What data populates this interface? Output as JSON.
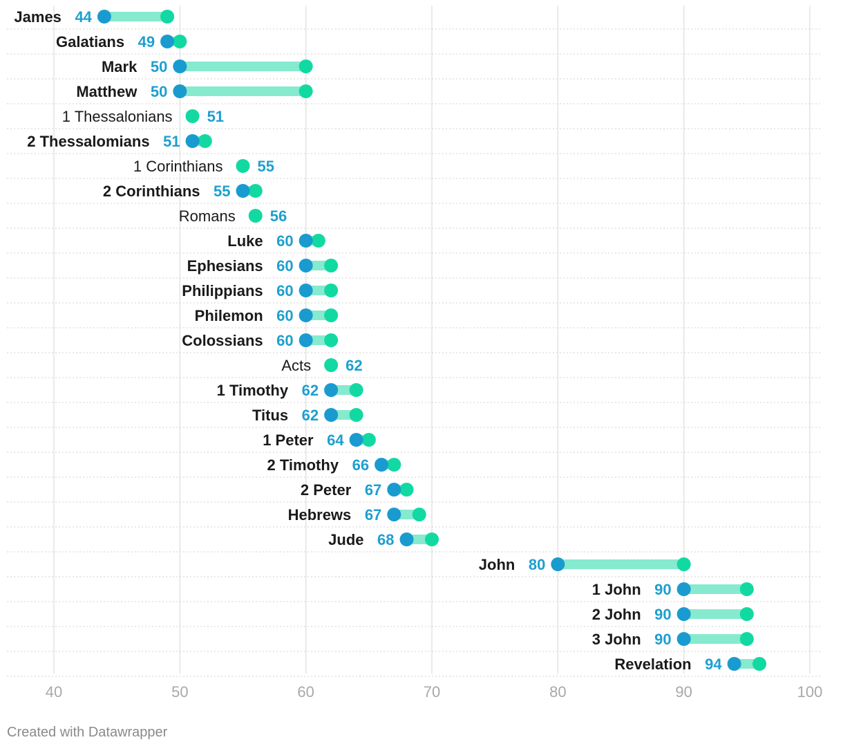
{
  "chart_data": {
    "type": "range-dot",
    "xlim": [
      40,
      100
    ],
    "xticks": [
      40,
      50,
      60,
      70,
      80,
      90,
      100
    ],
    "colors": {
      "start": "#1a9bcf",
      "end": "#12d9a2",
      "bar": "#86eacf",
      "value_label": "#1d9fd0",
      "label": "#1a1a1a"
    },
    "rows": [
      {
        "label": "James",
        "start": 44,
        "end": 49,
        "start_label": "44",
        "bold": true
      },
      {
        "label": "Galatians",
        "start": 49,
        "end": 50,
        "start_label": "49",
        "bold": true
      },
      {
        "label": "Mark",
        "start": 50,
        "end": 60,
        "start_label": "50",
        "bold": true
      },
      {
        "label": "Matthew",
        "start": 50,
        "end": 60,
        "start_label": "50",
        "bold": true
      },
      {
        "label": "1 Thessalonians",
        "start": 51,
        "end": 51,
        "start_label": "51",
        "bold": false
      },
      {
        "label": "2 Thessalomians",
        "start": 51,
        "end": 52,
        "start_label": "51",
        "bold": true
      },
      {
        "label": "1 Corinthians",
        "start": 55,
        "end": 55,
        "start_label": "55",
        "bold": false
      },
      {
        "label": "2 Corinthians",
        "start": 55,
        "end": 56,
        "start_label": "55",
        "bold": true
      },
      {
        "label": "Romans",
        "start": 56,
        "end": 56,
        "start_label": "56",
        "bold": false
      },
      {
        "label": "Luke",
        "start": 60,
        "end": 61,
        "start_label": "60",
        "bold": true
      },
      {
        "label": "Ephesians",
        "start": 60,
        "end": 62,
        "start_label": "60",
        "bold": true
      },
      {
        "label": "Philippians",
        "start": 60,
        "end": 62,
        "start_label": "60",
        "bold": true
      },
      {
        "label": "Philemon",
        "start": 60,
        "end": 62,
        "start_label": "60",
        "bold": true
      },
      {
        "label": "Colossians",
        "start": 60,
        "end": 62,
        "start_label": "60",
        "bold": true
      },
      {
        "label": "Acts",
        "start": 62,
        "end": 62,
        "start_label": "62",
        "bold": false
      },
      {
        "label": "1 Timothy",
        "start": 62,
        "end": 64,
        "start_label": "62",
        "bold": true
      },
      {
        "label": "Titus",
        "start": 62,
        "end": 64,
        "start_label": "62",
        "bold": true
      },
      {
        "label": "1 Peter",
        "start": 64,
        "end": 65,
        "start_label": "64",
        "bold": true
      },
      {
        "label": "2 Timothy",
        "start": 66,
        "end": 67,
        "start_label": "66",
        "bold": true
      },
      {
        "label": "2 Peter",
        "start": 67,
        "end": 68,
        "start_label": "67",
        "bold": true
      },
      {
        "label": "Hebrews",
        "start": 67,
        "end": 69,
        "start_label": "67",
        "bold": true
      },
      {
        "label": "Jude",
        "start": 68,
        "end": 70,
        "start_label": "68",
        "bold": true
      },
      {
        "label": "John",
        "start": 80,
        "end": 90,
        "start_label": "80",
        "bold": true
      },
      {
        "label": "1 John",
        "start": 90,
        "end": 95,
        "start_label": "90",
        "bold": true
      },
      {
        "label": "2 John",
        "start": 90,
        "end": 95,
        "start_label": "90",
        "bold": true
      },
      {
        "label": "3 John",
        "start": 90,
        "end": 95,
        "start_label": "90",
        "bold": true
      },
      {
        "label": "Revelation",
        "start": 94,
        "end": 96,
        "start_label": "94",
        "bold": true
      }
    ]
  },
  "footer": {
    "credit": "Created with Datawrapper"
  }
}
